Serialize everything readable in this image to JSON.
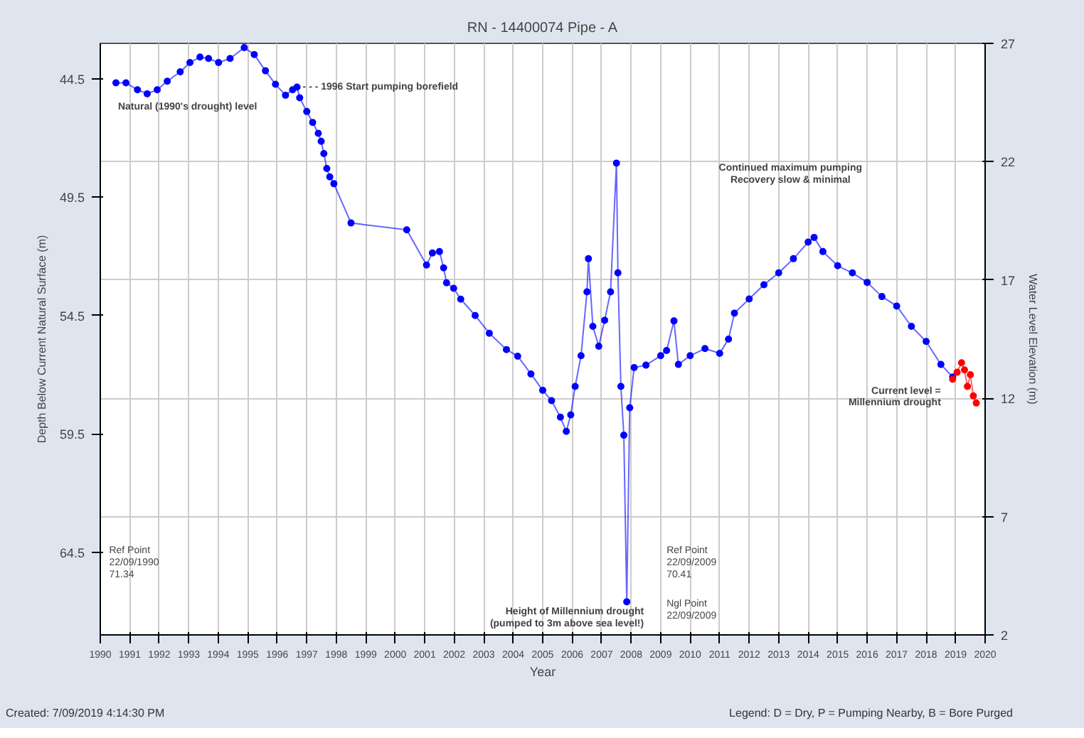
{
  "chart_data": {
    "type": "line",
    "title": "RN - 14400074 Pipe - A",
    "xlabel": "Year",
    "ylabel": "Depth Below Current Natural Surface (m)",
    "y2label": "Water Level Elevation (m)",
    "xlim": [
      1990,
      2020
    ],
    "xticks": [
      1990,
      1991,
      1992,
      1993,
      1994,
      1995,
      1996,
      1997,
      1998,
      1999,
      2000,
      2001,
      2002,
      2003,
      2004,
      2005,
      2006,
      2007,
      2008,
      2009,
      2010,
      2011,
      2012,
      2013,
      2014,
      2015,
      2016,
      2017,
      2018,
      2019,
      2020
    ],
    "ylim": [
      68,
      43
    ],
    "yticks": [
      44.5,
      49.5,
      54.5,
      59.5,
      64.5
    ],
    "y2lim": [
      2,
      27
    ],
    "y2ticks": [
      2,
      7,
      12,
      17,
      22,
      27
    ],
    "grid": true,
    "marker": "circle",
    "series": [
      {
        "color": "#0000ff",
        "x": [
          1990.53,
          1990.87,
          1991.26,
          1991.59,
          1991.93,
          1992.27,
          1992.71,
          1993.04,
          1993.38,
          1993.67,
          1994.01,
          1994.4,
          1994.88,
          1995.22,
          1995.6,
          1995.94,
          1996.28,
          1996.52,
          1996.67,
          1996.76,
          1997.0,
          1997.2,
          1997.39,
          1997.49,
          1997.58,
          1997.68,
          1997.78,
          1997.92,
          1998.5,
          2000.39,
          2001.06,
          2001.26,
          2001.5,
          2001.64,
          2001.74,
          2001.98,
          2002.22,
          2002.71,
          2003.19,
          2003.77,
          2004.15,
          2004.6,
          2005.0,
          2005.3,
          2005.6,
          2005.8,
          2005.95,
          2006.1,
          2006.3,
          2006.5,
          2006.55,
          2006.7,
          2006.9,
          2007.1,
          2007.3,
          2007.5,
          2007.55,
          2007.65,
          2007.75,
          2007.85,
          2007.95,
          2008.1,
          2008.5,
          2009.0,
          2009.2,
          2009.45,
          2009.6,
          2010.0,
          2010.5,
          2011.0,
          2011.3,
          2011.5,
          2012.0,
          2012.5,
          2013.0,
          2013.5,
          2014.0,
          2014.2,
          2014.5,
          2015.0,
          2015.5,
          2016.0,
          2016.5,
          2017.0,
          2017.5,
          2018.0,
          2018.5,
          2018.9
        ],
        "values": [
          44.67,
          44.67,
          44.96,
          45.13,
          44.96,
          44.6,
          44.2,
          43.81,
          43.58,
          43.64,
          43.81,
          43.64,
          43.18,
          43.47,
          44.16,
          44.73,
          45.19,
          44.96,
          44.85,
          45.3,
          45.88,
          46.34,
          46.8,
          47.14,
          47.66,
          48.29,
          48.64,
          48.93,
          50.59,
          50.88,
          52.37,
          51.86,
          51.8,
          52.49,
          53.12,
          53.35,
          53.81,
          54.5,
          55.25,
          55.94,
          56.22,
          56.97,
          57.66,
          58.1,
          58.8,
          59.4,
          58.7,
          57.5,
          56.2,
          53.5,
          52.1,
          54.96,
          55.8,
          54.7,
          53.5,
          48.06,
          52.7,
          57.5,
          59.56,
          66.6,
          58.4,
          56.7,
          56.6,
          56.2,
          55.98,
          54.73,
          56.57,
          56.2,
          55.9,
          56.1,
          55.5,
          54.4,
          53.8,
          53.2,
          52.7,
          52.1,
          51.4,
          51.2,
          51.8,
          52.4,
          52.7,
          53.1,
          53.7,
          54.1,
          54.96,
          55.6,
          56.57,
          57.1
        ]
      },
      {
        "color": "#ff0000",
        "x": [
          2018.9,
          2019.05,
          2019.2,
          2019.3,
          2019.4,
          2019.5,
          2019.6,
          2019.7
        ],
        "values": [
          57.2,
          56.9,
          56.5,
          56.8,
          57.5,
          57.0,
          57.9,
          58.2
        ]
      }
    ],
    "annotations": [
      "Natural (1990's drought) level",
      {
        "text": "- - - 1996 Start pumping borefield",
        "x": 1996.67,
        "y": 44.85
      },
      "Continued maximum pumping\nRecovery slow & minimal",
      "Current level =\nMillennium drought",
      {
        "text": "Height of Millennium drought\n(pumped to 3m above sea level!)",
        "x": 2007.85,
        "y": 66.6
      },
      "Ref Point\n22/09/1990\n71.34",
      "Ref Point\n22/09/2009\n70.41",
      "Ngl Point\n22/09/2009",
      "Created: 7/09/2019 4:14:30 PM",
      "Legend: D = Dry, P = Pumping Nearby, B = Bore Purged"
    ]
  }
}
